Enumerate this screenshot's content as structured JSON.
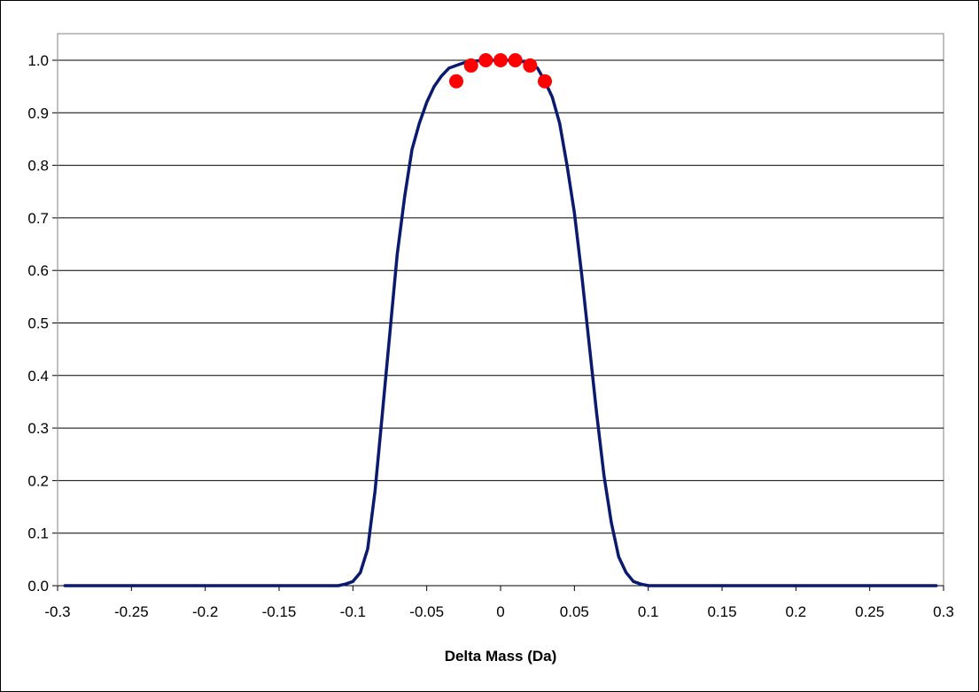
{
  "chart_data": {
    "type": "line",
    "title": "",
    "xlabel": "Delta Mass (Da)",
    "ylabel": "",
    "xlim": [
      -0.3,
      0.3
    ],
    "ylim": [
      0.0,
      1.0
    ],
    "x_ticks": [
      "-0.3",
      "-0.25",
      "-0.2",
      "-0.15",
      "-0.1",
      "-0.05",
      "0",
      "0.05",
      "0.1",
      "0.15",
      "0.2",
      "0.25",
      "0.3"
    ],
    "y_ticks": [
      "0.0",
      "0.1",
      "0.2",
      "0.3",
      "0.4",
      "0.5",
      "0.6",
      "0.7",
      "0.8",
      "0.9",
      "1.0"
    ],
    "grid": "horizontal",
    "legend": "none",
    "series": [
      {
        "kind": "line",
        "color": "#0a1a6e",
        "x": [
          -0.295,
          -0.25,
          -0.2,
          -0.15,
          -0.11,
          -0.105,
          -0.1,
          -0.095,
          -0.09,
          -0.085,
          -0.08,
          -0.075,
          -0.07,
          -0.065,
          -0.06,
          -0.055,
          -0.05,
          -0.045,
          -0.04,
          -0.035,
          -0.03,
          -0.025,
          -0.02,
          -0.01,
          0,
          0.01,
          0.02,
          0.025,
          0.03,
          0.035,
          0.04,
          0.045,
          0.05,
          0.055,
          0.06,
          0.065,
          0.07,
          0.075,
          0.08,
          0.085,
          0.09,
          0.095,
          0.1,
          0.105,
          0.11,
          0.15,
          0.2,
          0.25,
          0.295
        ],
        "y": [
          0,
          0,
          0,
          0,
          0.0,
          0.003,
          0.008,
          0.025,
          0.07,
          0.18,
          0.33,
          0.48,
          0.63,
          0.74,
          0.83,
          0.88,
          0.92,
          0.95,
          0.97,
          0.985,
          0.99,
          0.995,
          0.998,
          1.0,
          1.0,
          1.0,
          0.995,
          0.985,
          0.96,
          0.93,
          0.88,
          0.8,
          0.71,
          0.59,
          0.46,
          0.33,
          0.21,
          0.12,
          0.055,
          0.025,
          0.008,
          0.003,
          0.0,
          0,
          0,
          0,
          0,
          0,
          0
        ]
      },
      {
        "kind": "scatter",
        "color": "#ff0000",
        "x": [
          -0.03,
          -0.02,
          -0.01,
          0.0,
          0.01,
          0.02,
          0.03
        ],
        "y": [
          0.96,
          0.99,
          1.0,
          1.0,
          1.0,
          0.99,
          0.96
        ]
      }
    ]
  }
}
